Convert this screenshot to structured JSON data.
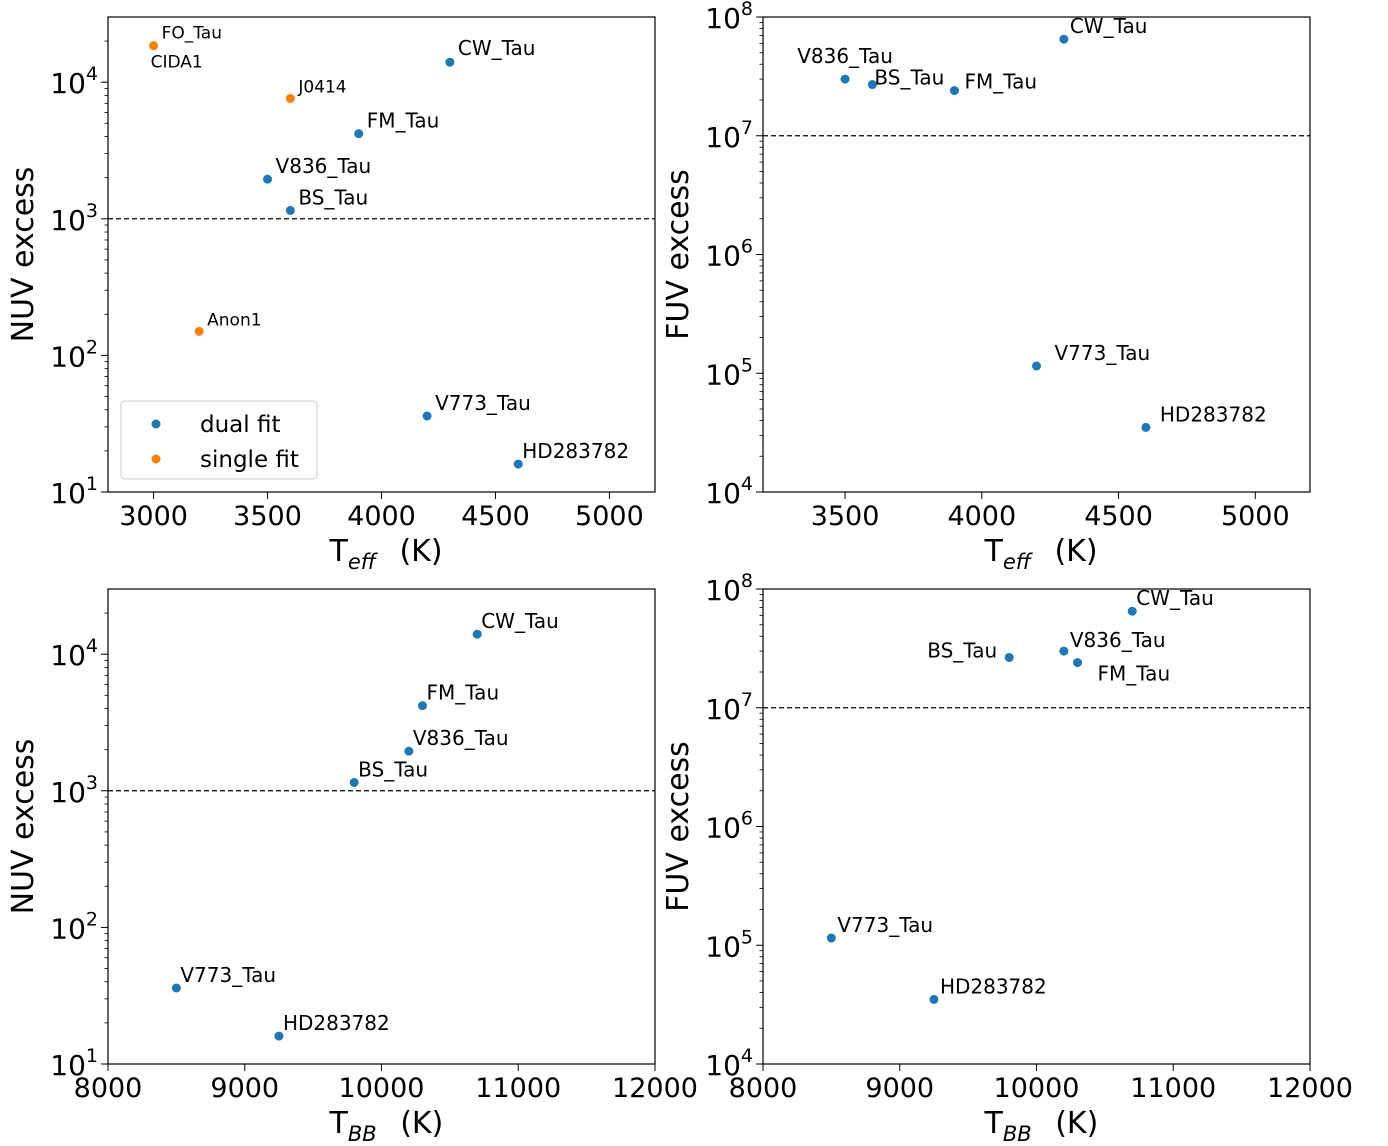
{
  "chart_data": [
    {
      "id": "a",
      "type": "scatter",
      "xlabel": "T",
      "xlabel_sub": "eff",
      "xlabel_unit": "(K)",
      "ylabel": "NUV excess",
      "xlim": [
        2800,
        5200
      ],
      "ylim": [
        10,
        30000
      ],
      "yscale": "log",
      "xticks": [
        3000,
        3500,
        4000,
        4500,
        5000
      ],
      "yticks": [
        {
          "base": "10",
          "exp": "1",
          "value": 10
        },
        {
          "base": "10",
          "exp": "2",
          "value": 100
        },
        {
          "base": "10",
          "exp": "3",
          "value": 1000
        },
        {
          "base": "10",
          "exp": "4",
          "value": 10000
        }
      ],
      "hline": 1000,
      "series": [
        {
          "name": "dual fit",
          "color": "#1f77b4",
          "points": [
            {
              "x": 4300,
              "y": 14000,
              "label": "CW_Tau",
              "lx": 8,
              "ly": -7,
              "fs": 20,
              "anchor": "start"
            },
            {
              "x": 3900,
              "y": 4200,
              "label": "FM_Tau",
              "lx": 8,
              "ly": -6,
              "fs": 20,
              "anchor": "start"
            },
            {
              "x": 3500,
              "y": 1950,
              "label": "V836_Tau",
              "lx": 8,
              "ly": -6,
              "fs": 20,
              "anchor": "start"
            },
            {
              "x": 3600,
              "y": 1150,
              "label": "BS_Tau",
              "lx": 8,
              "ly": -6,
              "fs": 20,
              "anchor": "start"
            },
            {
              "x": 4200,
              "y": 36,
              "label": "V773_Tau",
              "lx": 8,
              "ly": -6,
              "fs": 20,
              "anchor": "start"
            },
            {
              "x": 4600,
              "y": 16,
              "label": "HD283782",
              "lx": 4,
              "ly": -6,
              "fs": 20,
              "anchor": "start"
            }
          ]
        },
        {
          "name": "single fit",
          "color": "#ff7f0e",
          "points": [
            {
              "x": 3000,
              "y": 18500,
              "label": "FO_Tau",
              "lx": 8,
              "ly": -7,
              "fs": 17,
              "anchor": "start"
            },
            {
              "x": 3600,
              "y": 7600,
              "label": "J0414",
              "lx": 8,
              "ly": -6,
              "fs": 17,
              "anchor": "start"
            },
            {
              "x": 3200,
              "y": 150,
              "label": "Anon1",
              "lx": 8,
              "ly": -6,
              "fs": 17,
              "anchor": "start"
            }
          ]
        }
      ],
      "annotations": [
        {
          "text": "CIDA1",
          "x": 3000,
          "y": 18500,
          "dx": -3,
          "dy": 22,
          "fs": 17
        }
      ],
      "legend": {
        "position": "lower-left",
        "entries": [
          "dual fit",
          "single fit"
        ]
      }
    },
    {
      "id": "b",
      "type": "scatter",
      "xlabel": "T",
      "xlabel_sub": "eff",
      "xlabel_unit": "(K)",
      "ylabel": "FUV excess",
      "xlim": [
        3200,
        5200
      ],
      "ylim": [
        10000,
        100000000
      ],
      "yscale": "log",
      "xticks": [
        3500,
        4000,
        4500,
        5000
      ],
      "yticks": [
        {
          "base": "10",
          "exp": "4",
          "value": 10000
        },
        {
          "base": "10",
          "exp": "5",
          "value": 100000
        },
        {
          "base": "10",
          "exp": "6",
          "value": 1000000
        },
        {
          "base": "10",
          "exp": "7",
          "value": 10000000
        },
        {
          "base": "10",
          "exp": "8",
          "value": 100000000
        }
      ],
      "hline": 10000000,
      "series": [
        {
          "name": "dual fit",
          "color": "#1f77b4",
          "points": [
            {
              "x": 4300,
              "y": 65000000,
              "label": "CW_Tau",
              "lx": 6,
              "ly": -6,
              "fs": 20,
              "anchor": "start"
            },
            {
              "x": 3500,
              "y": 30000000,
              "label": "V836_Tau",
              "lx": 0,
              "ly": -16,
              "fs": 20,
              "anchor": "middle"
            },
            {
              "x": 3600,
              "y": 27000000,
              "label": "BS_Tau",
              "lx": 2,
              "ly": 0,
              "fs": 20,
              "anchor": "start"
            },
            {
              "x": 3900,
              "y": 24000000,
              "label": "FM_Tau",
              "lx": 10,
              "ly": -2,
              "fs": 20,
              "anchor": "start"
            },
            {
              "x": 4200,
              "y": 115000,
              "label": "V773_Tau",
              "lx": 18,
              "ly": -6,
              "fs": 20,
              "anchor": "start"
            },
            {
              "x": 4600,
              "y": 35000,
              "label": "HD283782",
              "lx": 14,
              "ly": -6,
              "fs": 20,
              "anchor": "start"
            }
          ]
        }
      ],
      "annotations": []
    },
    {
      "id": "c",
      "type": "scatter",
      "xlabel": "T",
      "xlabel_sub": "BB",
      "xlabel_unit": "(K)",
      "ylabel": "NUV excess",
      "xlim": [
        8000,
        12000
      ],
      "ylim": [
        10,
        30000
      ],
      "yscale": "log",
      "xticks": [
        8000,
        9000,
        10000,
        11000,
        12000
      ],
      "yticks": [
        {
          "base": "10",
          "exp": "1",
          "value": 10
        },
        {
          "base": "10",
          "exp": "2",
          "value": 100
        },
        {
          "base": "10",
          "exp": "3",
          "value": 1000
        },
        {
          "base": "10",
          "exp": "4",
          "value": 10000
        }
      ],
      "hline": 1000,
      "series": [
        {
          "name": "dual fit",
          "color": "#1f77b4",
          "points": [
            {
              "x": 10700,
              "y": 14000,
              "label": "CW_Tau",
              "lx": 4,
              "ly": -6,
              "fs": 20,
              "anchor": "start"
            },
            {
              "x": 10300,
              "y": 4200,
              "label": "FM_Tau",
              "lx": 4,
              "ly": -6,
              "fs": 20,
              "anchor": "start"
            },
            {
              "x": 10200,
              "y": 1950,
              "label": "V836_Tau",
              "lx": 4,
              "ly": -6,
              "fs": 20,
              "anchor": "start"
            },
            {
              "x": 9800,
              "y": 1150,
              "label": "BS_Tau",
              "lx": 4,
              "ly": -6,
              "fs": 20,
              "anchor": "start"
            },
            {
              "x": 8500,
              "y": 36,
              "label": "V773_Tau",
              "lx": 4,
              "ly": -6,
              "fs": 20,
              "anchor": "start"
            },
            {
              "x": 9250,
              "y": 16,
              "label": "HD283782",
              "lx": 4,
              "ly": -6,
              "fs": 20,
              "anchor": "start"
            }
          ]
        }
      ],
      "annotations": []
    },
    {
      "id": "d",
      "type": "scatter",
      "xlabel": "T",
      "xlabel_sub": "BB",
      "xlabel_unit": "(K)",
      "ylabel": "FUV excess",
      "xlim": [
        8000,
        12000
      ],
      "ylim": [
        10000,
        100000000
      ],
      "yscale": "log",
      "xticks": [
        8000,
        9000,
        10000,
        11000,
        12000
      ],
      "yticks": [
        {
          "base": "10",
          "exp": "4",
          "value": 10000
        },
        {
          "base": "10",
          "exp": "5",
          "value": 100000
        },
        {
          "base": "10",
          "exp": "6",
          "value": 1000000
        },
        {
          "base": "10",
          "exp": "7",
          "value": 10000000
        },
        {
          "base": "10",
          "exp": "8",
          "value": 100000000
        }
      ],
      "hline": 10000000,
      "series": [
        {
          "name": "dual fit",
          "color": "#1f77b4",
          "points": [
            {
              "x": 10700,
              "y": 65000000,
              "label": "CW_Tau",
              "lx": 4,
              "ly": -6,
              "fs": 20,
              "anchor": "start"
            },
            {
              "x": 10200,
              "y": 30000000,
              "label": "V836_Tau",
              "lx": 6,
              "ly": -4,
              "fs": 20,
              "anchor": "start"
            },
            {
              "x": 9800,
              "y": 26500000,
              "label": "BS_Tau",
              "lx": -12,
              "ly": 0,
              "fs": 20,
              "anchor": "end"
            },
            {
              "x": 10300,
              "y": 24000000,
              "label": "FM_Tau",
              "lx": 20,
              "ly": 18,
              "fs": 20,
              "anchor": "start"
            },
            {
              "x": 8500,
              "y": 115000,
              "label": "V773_Tau",
              "lx": 6,
              "ly": -6,
              "fs": 20,
              "anchor": "start"
            },
            {
              "x": 9250,
              "y": 35000,
              "label": "HD283782",
              "lx": 6,
              "ly": -6,
              "fs": 20,
              "anchor": "start"
            }
          ]
        }
      ],
      "annotations": []
    }
  ]
}
